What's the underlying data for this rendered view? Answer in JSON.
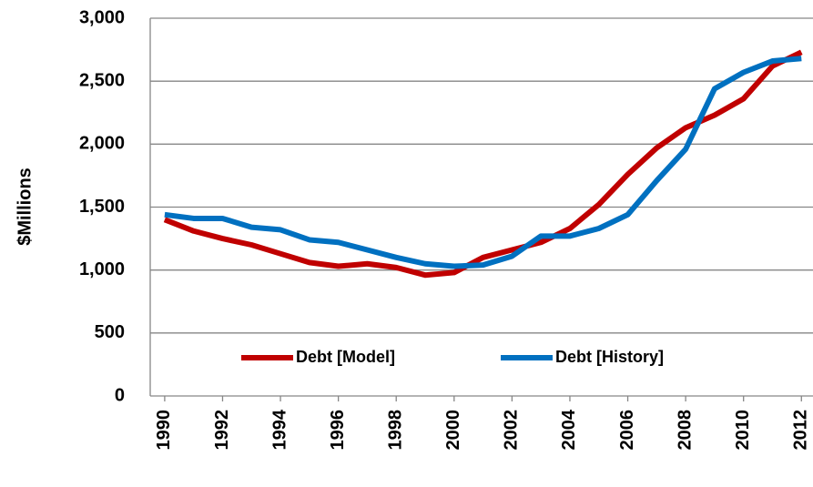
{
  "chart_data": {
    "type": "line",
    "y_label": "$Millions",
    "x": [
      1990,
      1991,
      1992,
      1993,
      1994,
      1995,
      1996,
      1997,
      1998,
      1999,
      2000,
      2001,
      2002,
      2003,
      2004,
      2005,
      2006,
      2007,
      2008,
      2009,
      2010,
      2011,
      2012
    ],
    "series": [
      {
        "name": "Debt [Model]",
        "color": "#c00000",
        "values": [
          1400,
          1310,
          1250,
          1200,
          1130,
          1060,
          1030,
          1050,
          1020,
          960,
          980,
          1100,
          1160,
          1220,
          1330,
          1520,
          1760,
          1970,
          2130,
          2230,
          2360,
          2620,
          2730
        ]
      },
      {
        "name": "Debt [History]",
        "color": "#0070c0",
        "values": [
          1440,
          1410,
          1410,
          1340,
          1320,
          1240,
          1220,
          1160,
          1100,
          1050,
          1030,
          1040,
          1110,
          1270,
          1270,
          1330,
          1440,
          1710,
          1960,
          2440,
          2570,
          2660,
          2680
        ]
      }
    ],
    "xlim": [
      1989.5,
      2012.4
    ],
    "xticks": [
      1990,
      1992,
      1994,
      1996,
      1998,
      2000,
      2002,
      2004,
      2006,
      2008,
      2010,
      2012
    ],
    "ylim": [
      0,
      3000
    ],
    "yticks": [
      0,
      500,
      {
        "value": 1000,
        "label": "1,000"
      },
      {
        "value": 1500,
        "label": "1,500"
      },
      {
        "value": 2000,
        "label": "2,000"
      },
      {
        "value": 2500,
        "label": "2,500"
      },
      {
        "value": 3000,
        "label": "3,000"
      }
    ],
    "grid": true,
    "legend": "bottom"
  }
}
